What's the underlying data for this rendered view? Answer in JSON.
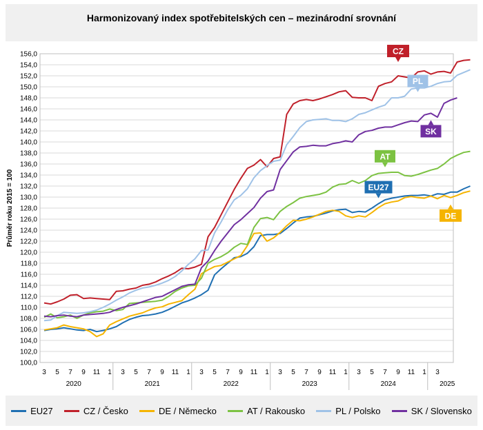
{
  "page": {
    "title": "Harmonizovaný index spotřebitelských cen – mezinárodní srovnání"
  },
  "chart_data": {
    "type": "line",
    "title": "Harmonizovaný index spotřebitelských cen – mezinárodní srovnání",
    "ylabel": "Průměr roku 2015 = 100",
    "xlabel": "",
    "ylim": [
      100,
      156
    ],
    "ytick_step": 2,
    "grid": true,
    "legend_position": "bottom",
    "x_tick_labels": [
      "3",
      "5",
      "7",
      "9",
      "11",
      "1",
      "3",
      "5",
      "7",
      "9",
      "11",
      "1",
      "3",
      "5",
      "7",
      "9",
      "11",
      "1",
      "3",
      "5",
      "7",
      "9",
      "11",
      "1",
      "3",
      "5",
      "7",
      "9",
      "11",
      "1",
      "3"
    ],
    "x_year_labels": [
      "2020",
      "2021",
      "2022",
      "2023",
      "2024",
      "2025"
    ],
    "series": [
      {
        "name": "EU27",
        "color": "#1f6fb2",
        "end_label": "EU27",
        "values": [
          105.8,
          106.0,
          106.1,
          106.3,
          106.1,
          105.9,
          105.8,
          106.0,
          105.6,
          105.8,
          106.1,
          106.5,
          107.2,
          107.8,
          108.2,
          108.5,
          108.6,
          108.8,
          109.1,
          109.6,
          110.2,
          110.8,
          111.2,
          111.7,
          112.3,
          113.1,
          115.9,
          117.0,
          118.0,
          119.0,
          119.2,
          119.8,
          121.0,
          123.0,
          123.2,
          123.2,
          123.4,
          124.3,
          125.3,
          126.2,
          126.4,
          126.5,
          126.8,
          127.1,
          127.5,
          127.7,
          127.8,
          127.2,
          127.4,
          127.3,
          128.0,
          128.8,
          129.5,
          129.8,
          130.0,
          130.2,
          130.3,
          130.3,
          130.4,
          130.2,
          130.6,
          130.5,
          130.9,
          130.9,
          131.5,
          132.0
        ]
      },
      {
        "name": "CZ / Česko",
        "color": "#c0202a",
        "end_label": "CZ",
        "values": [
          110.8,
          110.6,
          111.0,
          111.5,
          112.2,
          112.3,
          111.6,
          111.7,
          111.6,
          111.5,
          111.4,
          112.9,
          113.0,
          113.3,
          113.5,
          114.0,
          114.2,
          114.6,
          115.2,
          115.7,
          116.3,
          117.1,
          117.0,
          117.3,
          117.8,
          122.8,
          124.5,
          126.8,
          129.1,
          131.4,
          133.4,
          135.2,
          135.8,
          136.8,
          135.5,
          137.0,
          137.3,
          145.0,
          146.9,
          147.5,
          147.7,
          147.5,
          147.8,
          148.2,
          148.6,
          149.1,
          149.3,
          148.1,
          148.0,
          148.0,
          147.5,
          150.1,
          150.6,
          150.9,
          152.0,
          151.8,
          151.6,
          152.7,
          152.9,
          152.3,
          152.7,
          152.8,
          152.5,
          154.5,
          154.8,
          154.9
        ]
      },
      {
        "name": "DE / Německo",
        "color": "#f5b400",
        "end_label": "DE",
        "values": [
          105.9,
          106.1,
          106.3,
          106.8,
          106.5,
          106.3,
          106.1,
          105.6,
          104.7,
          105.2,
          106.8,
          107.4,
          107.9,
          108.4,
          108.7,
          109.0,
          109.5,
          109.9,
          110.1,
          110.6,
          110.9,
          111.2,
          112.3,
          113.3,
          116.1,
          116.8,
          117.4,
          117.6,
          118.2,
          118.8,
          119.4,
          121.2,
          123.4,
          123.5,
          122.0,
          122.6,
          123.6,
          124.8,
          125.8,
          125.7,
          126.0,
          126.4,
          126.9,
          127.4,
          127.6,
          127.4,
          126.6,
          126.3,
          126.6,
          126.4,
          127.2,
          128.1,
          128.8,
          129.1,
          129.3,
          129.9,
          130.1,
          129.9,
          129.8,
          130.2,
          129.7,
          130.3,
          129.9,
          130.3,
          130.8,
          131.1
        ]
      },
      {
        "name": "AT / Rakousko",
        "color": "#7cc242",
        "end_label": "AT",
        "values": [
          108.2,
          108.8,
          108.1,
          108.3,
          108.6,
          108.0,
          108.6,
          109.0,
          109.2,
          109.3,
          109.7,
          109.4,
          109.6,
          110.7,
          110.8,
          110.9,
          111.0,
          111.1,
          111.3,
          112.0,
          112.9,
          113.5,
          113.9,
          114.0,
          115.3,
          118.0,
          118.7,
          119.2,
          119.9,
          120.9,
          121.6,
          121.4,
          124.5,
          126.1,
          126.3,
          125.9,
          127.4,
          128.3,
          129.0,
          129.8,
          130.1,
          130.3,
          130.5,
          130.9,
          131.8,
          132.3,
          132.4,
          133.0,
          132.5,
          133.0,
          133.9,
          134.3,
          134.4,
          134.5,
          134.5,
          133.9,
          133.8,
          134.1,
          134.5,
          134.9,
          135.2,
          136.0,
          137.0,
          137.6,
          138.1,
          138.3
        ]
      },
      {
        "name": "PL / Polsko",
        "color": "#9fc2e7",
        "end_label": "PL",
        "values": [
          107.6,
          107.7,
          108.5,
          109.1,
          109.0,
          108.9,
          109.0,
          109.2,
          109.5,
          110.0,
          110.6,
          111.3,
          111.9,
          112.6,
          113.1,
          113.5,
          113.7,
          114.0,
          114.4,
          114.9,
          115.6,
          116.6,
          117.8,
          118.8,
          120.3,
          120.4,
          123.5,
          125.5,
          127.7,
          129.5,
          130.3,
          131.5,
          133.5,
          134.8,
          135.7,
          136.5,
          136.7,
          139.5,
          141.0,
          142.6,
          143.7,
          144.0,
          144.1,
          144.2,
          143.9,
          143.9,
          143.7,
          144.2,
          145.0,
          145.3,
          145.8,
          146.3,
          146.7,
          148.0,
          148.0,
          148.3,
          149.6,
          149.8,
          149.8,
          150.1,
          150.6,
          150.9,
          151.0,
          152.1,
          152.6,
          153.1
        ]
      },
      {
        "name": "SK / Slovensko",
        "color": "#7030a0",
        "end_label": "SK",
        "values": [
          108.4,
          108.3,
          108.5,
          108.6,
          108.4,
          108.3,
          108.6,
          108.7,
          108.8,
          108.9,
          109.1,
          109.6,
          110.0,
          110.3,
          110.6,
          111.0,
          111.4,
          111.8,
          112.0,
          112.6,
          113.2,
          113.8,
          114.1,
          114.2,
          117.2,
          118.4,
          120.3,
          122.0,
          123.5,
          125.0,
          125.9,
          127.0,
          128.1,
          129.8,
          131.0,
          131.3,
          135.0,
          136.6,
          138.2,
          139.1,
          139.2,
          139.4,
          139.3,
          139.3,
          139.7,
          139.9,
          140.2,
          140.0,
          141.3,
          141.9,
          142.1,
          142.5,
          142.7,
          142.7,
          143.1,
          143.5,
          143.8,
          143.7,
          144.9,
          145.2,
          144.5,
          147.0,
          147.6,
          148.0
        ]
      }
    ]
  }
}
